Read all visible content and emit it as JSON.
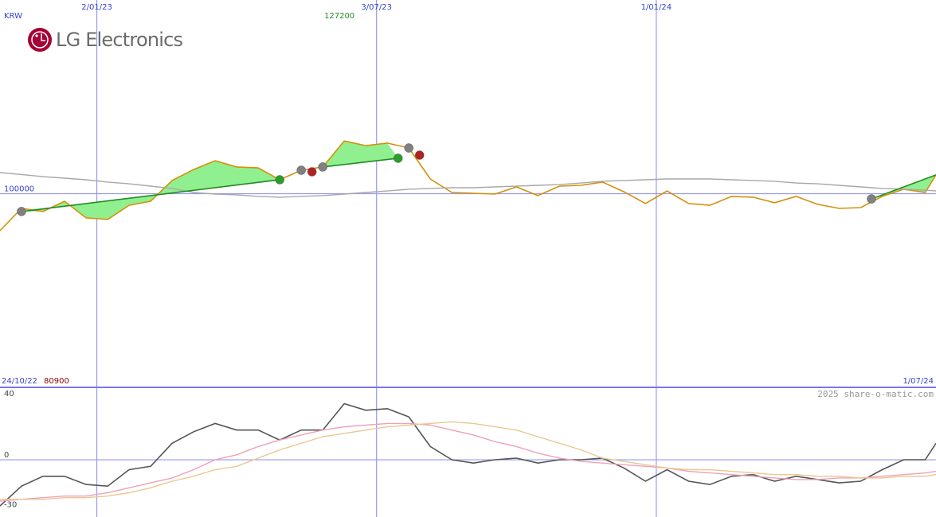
{
  "chart_data": [
    {
      "type": "line",
      "title": "LG Electronics",
      "currency": "KRW",
      "max_label": 127200,
      "min_label": 80900,
      "start_label": "24/10/22",
      "end_label": "1/07/24",
      "x": [
        "2022-10-31",
        "2022-11-14",
        "2022-11-28",
        "2022-12-12",
        "2022-12-26",
        "2023-01-09",
        "2023-01-23",
        "2023-02-06",
        "2023-02-20",
        "2023-03-06",
        "2023-03-20",
        "2023-04-03",
        "2023-04-17",
        "2023-05-01",
        "2023-05-15",
        "2023-05-29",
        "2023-06-12",
        "2023-06-26",
        "2023-07-10",
        "2023-07-24",
        "2023-08-07",
        "2023-08-21",
        "2023-09-04",
        "2023-09-18",
        "2023-10-02",
        "2023-10-16",
        "2023-10-30",
        "2023-11-13",
        "2023-11-27",
        "2023-12-11",
        "2023-12-25",
        "2024-01-08",
        "2024-01-22",
        "2024-02-05",
        "2024-02-19",
        "2024-03-04",
        "2024-03-18",
        "2024-04-01",
        "2024-04-15",
        "2024-04-29",
        "2024-05-13",
        "2024-05-27",
        "2024-06-10",
        "2024-06-24",
        "2024-07-01"
      ],
      "series": [
        {
          "color": "#d4900a",
          "values": [
            80900,
            92400,
            90800,
            96100,
            87500,
            86700,
            94000,
            96100,
            106800,
            112500,
            117000,
            113800,
            113300,
            107200,
            112100,
            113800,
            127200,
            124800,
            126100,
            123600,
            107600,
            100600,
            100200,
            99800,
            103500,
            99000,
            103900,
            104300,
            106000,
            101000,
            94900,
            101400,
            94900,
            94000,
            98600,
            98200,
            95300,
            98600,
            94500,
            92400,
            92800,
            98600,
            102300,
            100600,
            109700
          ]
        },
        {
          "color": "#a8a8a8",
          "values": [
            110900,
            109900,
            108800,
            108000,
            107200,
            106000,
            105100,
            103900,
            102700,
            100600,
            99800,
            99400,
            98600,
            98200,
            98600,
            99000,
            99800,
            100600,
            101400,
            102300,
            102700,
            103100,
            103100,
            103500,
            103900,
            104300,
            104700,
            105500,
            106400,
            106800,
            107200,
            107600,
            107600,
            107600,
            107200,
            106800,
            106400,
            105500,
            105100,
            104300,
            103500,
            102700,
            102300,
            101800,
            101400
          ]
        }
      ],
      "xlim": [
        "2022-10-31",
        "2024-07-01"
      ],
      "xticks": [
        {
          "value": "2023-01-02",
          "label": "2/01/23"
        },
        {
          "value": "2023-07-03",
          "label": "3/07/23"
        },
        {
          "value": "2024-01-01",
          "label": "1/01/24"
        }
      ],
      "ylim": [
        0,
        200000
      ],
      "yticks": [
        100000
      ],
      "ygrid": [
        true
      ],
      "grid_color": "#9999ee",
      "trend_color": "#228b22",
      "trend_fill": "#90f090",
      "trend_lines": [
        {
          "x": [
            "2022-11-14",
            "2023-05-01"
          ],
          "values": [
            90800,
            107200
          ]
        },
        {
          "x": [
            "2023-05-29",
            "2023-07-17"
          ],
          "values": [
            113800,
            118300
          ]
        },
        {
          "x": [
            "2024-05-20",
            "2024-07-01"
          ],
          "values": [
            97300,
            109700
          ]
        }
      ],
      "signals": {
        "x": [
          "2022-11-14",
          "2023-05-01",
          "2023-05-15",
          "2023-05-22",
          "2023-05-29",
          "2023-07-17",
          "2023-07-24",
          "2023-07-31",
          "2024-05-20"
        ],
        "values": [
          90800,
          107200,
          112100,
          111300,
          113800,
          118300,
          123600,
          119900,
          97300
        ],
        "colors": [
          "#808080",
          "#2a9d2a",
          "#808080",
          "#b22222",
          "#808080",
          "#2a9d2a",
          "#808080",
          "#b22222",
          "#808080"
        ]
      }
    },
    {
      "type": "line",
      "watermark": "2025 share-o-matic.com",
      "x": [
        "2022-10-31",
        "2022-11-14",
        "2022-11-28",
        "2022-12-12",
        "2022-12-26",
        "2023-01-09",
        "2023-01-23",
        "2023-02-06",
        "2023-02-20",
        "2023-03-06",
        "2023-03-20",
        "2023-04-03",
        "2023-04-17",
        "2023-05-01",
        "2023-05-15",
        "2023-05-29",
        "2023-06-12",
        "2023-06-26",
        "2023-07-10",
        "2023-07-24",
        "2023-08-07",
        "2023-08-21",
        "2023-09-04",
        "2023-09-18",
        "2023-10-02",
        "2023-10-16",
        "2023-10-30",
        "2023-11-13",
        "2023-11-27",
        "2023-12-11",
        "2023-12-25",
        "2024-01-08",
        "2024-01-22",
        "2024-02-05",
        "2024-02-19",
        "2024-03-04",
        "2024-03-18",
        "2024-04-01",
        "2024-04-15",
        "2024-04-29",
        "2024-05-13",
        "2024-05-27",
        "2024-06-10",
        "2024-06-24",
        "2024-07-01"
      ],
      "series": [
        {
          "color": "#555555",
          "values": [
            -28,
            -16,
            -10,
            -10,
            -15,
            -16,
            -6,
            -4,
            10,
            17,
            22,
            18,
            18,
            12,
            18,
            18,
            34,
            30,
            31,
            26,
            8,
            0,
            -2,
            0,
            1,
            -2,
            0,
            0,
            1,
            -5,
            -13,
            -6,
            -13,
            -15,
            -10,
            -9,
            -13,
            -10,
            -12,
            -14,
            -13,
            -6,
            0,
            0,
            10
          ]
        },
        {
          "color": "#f0a0b8",
          "values": [
            -25,
            -24,
            -23,
            -22,
            -22,
            -20,
            -17,
            -14,
            -11,
            -6,
            0,
            3,
            8,
            12,
            15,
            18,
            20,
            21,
            22,
            22,
            21,
            18,
            15,
            11,
            8,
            4,
            1,
            -1,
            -2,
            -3,
            -4,
            -5,
            -7,
            -8,
            -9,
            -10,
            -11,
            -12,
            -12,
            -11,
            -11,
            -10,
            -9,
            -8,
            -7
          ]
        },
        {
          "color": "#e8c890",
          "values": [
            -24,
            -24,
            -24,
            -23,
            -23,
            -22,
            -20,
            -17,
            -13,
            -10,
            -6,
            -4,
            1,
            6,
            10,
            14,
            16,
            18,
            20,
            21,
            22,
            23,
            22,
            20,
            18,
            14,
            10,
            6,
            1,
            -1,
            -3,
            -5,
            -6,
            -6,
            -7,
            -8,
            -9,
            -9,
            -10,
            -10,
            -11,
            -11,
            -10,
            -10,
            -9
          ]
        }
      ],
      "xlim": [
        "2022-10-31",
        "2024-07-01"
      ],
      "ylim": [
        -34.7,
        43.9
      ],
      "yticks": [
        -30,
        0,
        40
      ],
      "ygrid": [
        false,
        true,
        false
      ],
      "grid_color": "#9999ee"
    }
  ]
}
